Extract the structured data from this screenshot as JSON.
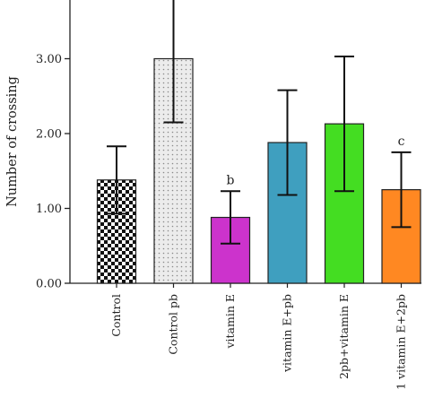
{
  "chart_data": {
    "type": "bar",
    "title": "",
    "xlabel": "",
    "ylabel": "Number of crossing",
    "ylim": [
      0,
      3.75
    ],
    "yticks": [
      0,
      1,
      2,
      3
    ],
    "ytick_labels": [
      "0.00",
      "1.00",
      "2.00",
      "3.00"
    ],
    "grid": false,
    "categories": [
      "Control",
      "Control pb",
      "vitamin E",
      "vitamin E+pb",
      "2pb+vitamin E",
      "1 vitamin E+2pb"
    ],
    "values": [
      1.38,
      3.0,
      0.88,
      1.88,
      2.13,
      1.25
    ],
    "errors": [
      0.45,
      0.85,
      0.35,
      0.7,
      0.9,
      0.5
    ],
    "annotations": [
      "",
      "",
      "b",
      "",
      "",
      "c"
    ],
    "bar_colors": [
      "#ffffff",
      "#e9e9e9",
      "#cc33cc",
      "#3f9fbf",
      "#44dd22",
      "#ff8822"
    ],
    "bar_patterns": [
      "checker",
      "dots",
      "solid",
      "solid",
      "solid",
      "solid"
    ]
  }
}
